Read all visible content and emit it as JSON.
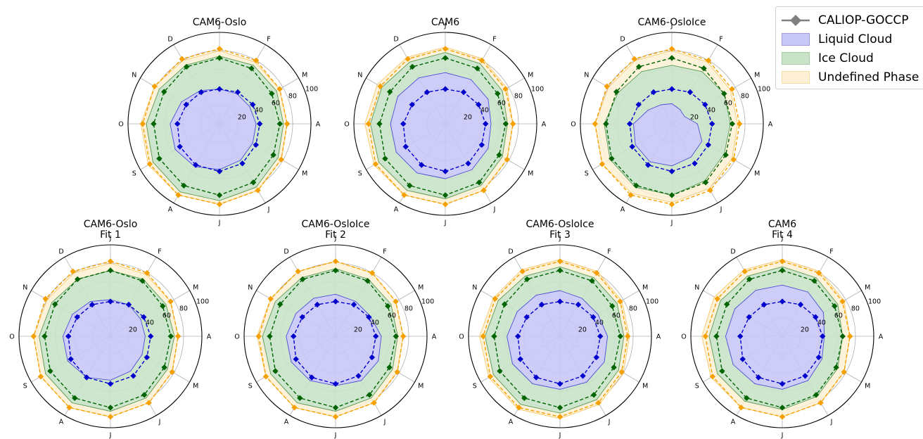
{
  "colors": {
    "liquid_line": "#0000cc",
    "liquid_fill": "#c8c8f7",
    "ice_line": "#006400",
    "ice_fill": "#c9e3c9",
    "undef_line": "#f5a000",
    "undef_fill": "#fdf0d4",
    "obs_marker": "#808080",
    "grid": "#b0b0b0"
  },
  "legend": {
    "items": [
      {
        "label": "CALIOP-GOCCP",
        "kind": "observations"
      },
      {
        "label": "Liquid Cloud",
        "kind": "liquid"
      },
      {
        "label": "Ice Cloud",
        "kind": "ice"
      },
      {
        "label": "Undefined Phase",
        "kind": "undefined"
      }
    ]
  },
  "chart_data": [
    {
      "type": "radar",
      "title": "CAM6-Oslo",
      "theta_labels": [
        "J",
        "F",
        "M",
        "A",
        "M",
        "J",
        "J",
        "A",
        "S",
        "O",
        "N",
        "D"
      ],
      "r_ticks": [
        "20",
        "40",
        "60",
        "80",
        "100"
      ],
      "rlim": [
        0,
        100
      ],
      "model": {
        "liquid": [
          38,
          38,
          38,
          40,
          42,
          46,
          50,
          54,
          56,
          54,
          48,
          42
        ],
        "ice_top": [
          74,
          74,
          72,
          70,
          74,
          80,
          84,
          86,
          84,
          80,
          76,
          74
        ],
        "undef_top": [
          80,
          78,
          76,
          74,
          78,
          84,
          88,
          90,
          90,
          86,
          82,
          80
        ]
      },
      "obs": {
        "liquid": [
          38,
          40,
          42,
          44,
          46,
          50,
          52,
          52,
          50,
          46,
          42,
          40
        ],
        "ice": [
          72,
          70,
          66,
          66,
          68,
          74,
          78,
          78,
          76,
          72,
          70,
          72
        ],
        "undef": [
          82,
          80,
          76,
          74,
          78,
          84,
          88,
          90,
          88,
          84,
          82,
          82
        ]
      }
    },
    {
      "type": "radar",
      "title": "CAM6",
      "theta_labels": [
        "J",
        "F",
        "M",
        "A",
        "M",
        "J",
        "J",
        "A",
        "S",
        "O",
        "N",
        "D"
      ],
      "r_ticks": [
        "20",
        "40",
        "60",
        "80",
        "100"
      ],
      "rlim": [
        0,
        100
      ],
      "model": {
        "liquid": [
          56,
          56,
          54,
          50,
          54,
          58,
          60,
          62,
          62,
          60,
          60,
          58
        ],
        "ice_top": [
          78,
          76,
          72,
          68,
          72,
          78,
          82,
          84,
          84,
          82,
          80,
          78
        ],
        "undef_top": [
          84,
          82,
          78,
          74,
          78,
          84,
          88,
          90,
          90,
          88,
          86,
          84
        ]
      },
      "obs": {
        "liquid": [
          38,
          40,
          42,
          44,
          46,
          50,
          52,
          52,
          50,
          46,
          42,
          40
        ],
        "ice": [
          72,
          70,
          66,
          66,
          68,
          74,
          78,
          78,
          76,
          72,
          70,
          72
        ],
        "undef": [
          82,
          80,
          76,
          74,
          78,
          84,
          88,
          90,
          88,
          84,
          82,
          82
        ]
      }
    },
    {
      "type": "radar",
      "title": "CAM6-OsloIce",
      "theta_labels": [
        "J",
        "F",
        "M",
        "A",
        "M",
        "J",
        "J",
        "A",
        "S",
        "O",
        "N",
        "D"
      ],
      "r_ticks": [
        "20",
        "40",
        "60",
        "80",
        "100"
      ],
      "rlim": [
        0,
        100
      ],
      "model": {
        "liquid": [
          22,
          18,
          16,
          28,
          38,
          42,
          46,
          48,
          46,
          42,
          30,
          24
        ],
        "ice_top": [
          64,
          66,
          66,
          64,
          66,
          72,
          78,
          80,
          78,
          74,
          68,
          66
        ],
        "undef_top": [
          80,
          78,
          74,
          72,
          76,
          82,
          86,
          88,
          88,
          84,
          80,
          80
        ]
      },
      "obs": {
        "liquid": [
          38,
          40,
          42,
          44,
          46,
          50,
          52,
          52,
          50,
          46,
          42,
          40
        ],
        "ice": [
          72,
          70,
          66,
          66,
          68,
          74,
          78,
          78,
          76,
          72,
          70,
          72
        ],
        "undef": [
          82,
          80,
          76,
          74,
          78,
          84,
          88,
          90,
          88,
          84,
          82,
          82
        ]
      }
    },
    {
      "type": "radar",
      "title": "CAM6-Oslo\nFit 1",
      "theta_labels": [
        "J",
        "F",
        "M",
        "A",
        "M",
        "J",
        "J",
        "A",
        "S",
        "O",
        "N",
        "D"
      ],
      "r_ticks": [
        "20",
        "40",
        "60",
        "80",
        "100"
      ],
      "rlim": [
        0,
        100
      ],
      "model": {
        "liquid": [
          40,
          40,
          38,
          38,
          40,
          44,
          48,
          52,
          54,
          52,
          48,
          44
        ],
        "ice_top": [
          72,
          72,
          70,
          70,
          72,
          78,
          82,
          84,
          82,
          78,
          74,
          72
        ],
        "undef_top": [
          80,
          78,
          76,
          74,
          78,
          84,
          88,
          90,
          88,
          84,
          80,
          80
        ]
      },
      "obs": {
        "liquid": [
          38,
          40,
          42,
          44,
          46,
          50,
          52,
          52,
          50,
          46,
          42,
          40
        ],
        "ice": [
          72,
          70,
          66,
          66,
          68,
          74,
          78,
          78,
          76,
          72,
          70,
          72
        ],
        "undef": [
          82,
          80,
          76,
          74,
          78,
          84,
          88,
          90,
          88,
          84,
          82,
          82
        ]
      }
    },
    {
      "type": "radar",
      "title": "CAM6-OsloIce\nFit 2",
      "theta_labels": [
        "J",
        "F",
        "M",
        "A",
        "M",
        "J",
        "J",
        "A",
        "S",
        "O",
        "N",
        "D"
      ],
      "r_ticks": [
        "20",
        "40",
        "60",
        "80",
        "100"
      ],
      "rlim": [
        0,
        100
      ],
      "model": {
        "liquid": [
          46,
          44,
          44,
          50,
          54,
          56,
          54,
          56,
          56,
          54,
          50,
          48
        ],
        "ice_top": [
          74,
          72,
          70,
          68,
          72,
          78,
          82,
          84,
          82,
          80,
          76,
          74
        ],
        "undef_top": [
          82,
          80,
          76,
          74,
          78,
          84,
          88,
          90,
          88,
          86,
          82,
          82
        ]
      },
      "obs": {
        "liquid": [
          38,
          40,
          42,
          44,
          46,
          50,
          52,
          52,
          50,
          46,
          42,
          40
        ],
        "ice": [
          72,
          70,
          66,
          66,
          68,
          74,
          78,
          78,
          76,
          72,
          70,
          72
        ],
        "undef": [
          82,
          80,
          76,
          74,
          78,
          84,
          88,
          90,
          88,
          84,
          82,
          82
        ]
      }
    },
    {
      "type": "radar",
      "title": "CAM6-OsloIce\nFit 3",
      "theta_labels": [
        "J",
        "F",
        "M",
        "A",
        "M",
        "J",
        "J",
        "A",
        "S",
        "O",
        "N",
        "D"
      ],
      "r_ticks": [
        "20",
        "40",
        "60",
        "80",
        "100"
      ],
      "rlim": [
        0,
        100
      ],
      "model": {
        "liquid": [
          50,
          48,
          48,
          52,
          56,
          58,
          58,
          60,
          60,
          58,
          54,
          52
        ],
        "ice_top": [
          76,
          74,
          72,
          70,
          74,
          80,
          84,
          86,
          84,
          82,
          78,
          76
        ],
        "undef_top": [
          84,
          82,
          78,
          76,
          80,
          86,
          90,
          92,
          90,
          88,
          84,
          84
        ]
      },
      "obs": {
        "liquid": [
          38,
          40,
          42,
          44,
          46,
          50,
          52,
          52,
          50,
          46,
          42,
          40
        ],
        "ice": [
          72,
          70,
          66,
          66,
          68,
          74,
          78,
          78,
          76,
          72,
          70,
          72
        ],
        "undef": [
          82,
          80,
          76,
          74,
          78,
          84,
          88,
          90,
          88,
          84,
          82,
          82
        ]
      }
    },
    {
      "type": "radar",
      "title": "CAM6\nFit 4",
      "theta_labels": [
        "J",
        "F",
        "M",
        "A",
        "M",
        "J",
        "J",
        "A",
        "S",
        "O",
        "N",
        "D"
      ],
      "r_ticks": [
        "20",
        "40",
        "60",
        "80",
        "100"
      ],
      "rlim": [
        0,
        100
      ],
      "model": {
        "liquid": [
          56,
          56,
          52,
          46,
          50,
          56,
          58,
          60,
          62,
          62,
          60,
          58
        ],
        "ice_top": [
          76,
          74,
          70,
          66,
          70,
          76,
          80,
          82,
          82,
          80,
          78,
          76
        ],
        "undef_top": [
          84,
          82,
          78,
          74,
          78,
          84,
          88,
          90,
          90,
          88,
          86,
          84
        ]
      },
      "obs": {
        "liquid": [
          38,
          40,
          42,
          44,
          46,
          50,
          52,
          52,
          50,
          46,
          42,
          40
        ],
        "ice": [
          72,
          70,
          66,
          66,
          68,
          74,
          78,
          78,
          76,
          72,
          70,
          72
        ],
        "undef": [
          82,
          80,
          76,
          74,
          78,
          84,
          88,
          90,
          88,
          84,
          82,
          82
        ]
      }
    }
  ]
}
